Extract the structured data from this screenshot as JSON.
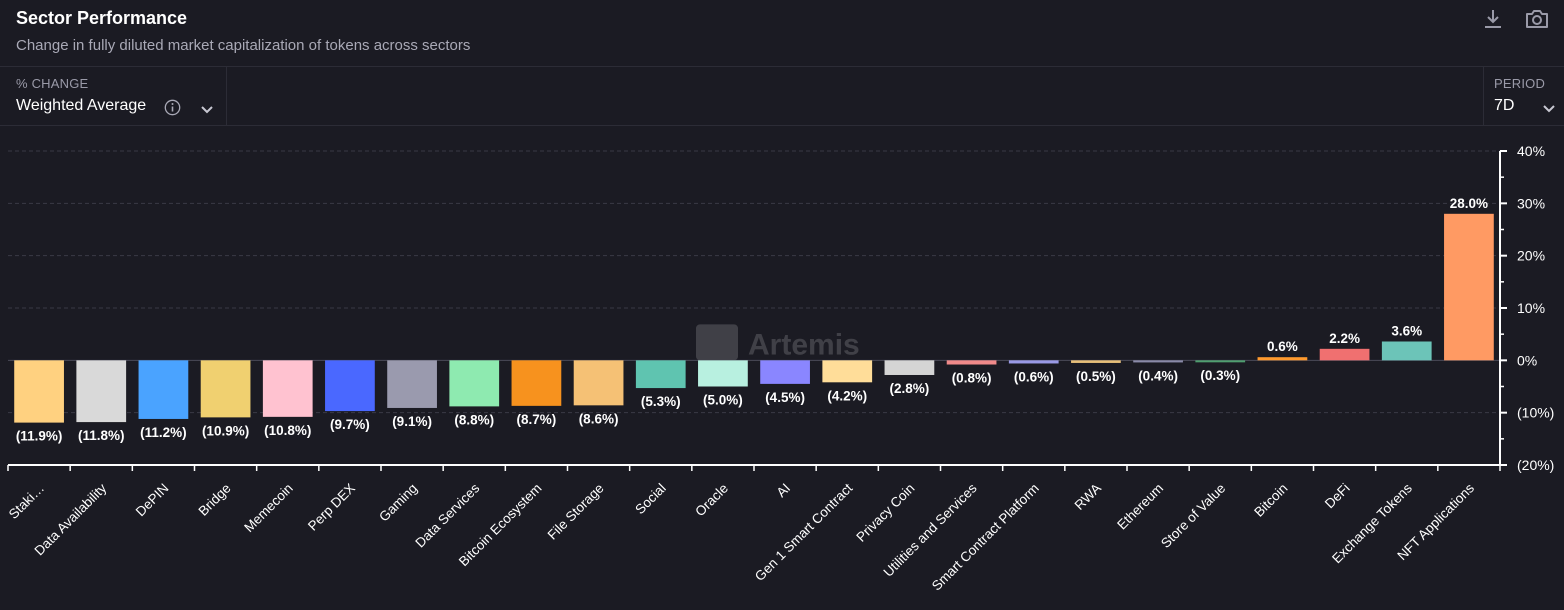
{
  "header": {
    "title": "Sector Performance",
    "subtitle": "Change in fully diluted market capitalization of tokens across sectors",
    "download_icon": "download-icon",
    "screenshot_icon": "camera-icon"
  },
  "controls": {
    "metric_label": "% CHANGE",
    "metric_value": "Weighted Average",
    "period_label": "PERIOD",
    "period_value": "7D"
  },
  "watermark": "Artemis",
  "colors": {
    "background": "#1b1b23",
    "grid": "#3a3a46",
    "axis": "#ffffff"
  },
  "chart_data": {
    "type": "bar",
    "title": "",
    "xlabel": "",
    "ylabel": "",
    "ylim": [
      -20,
      40
    ],
    "y_ticks": [
      "40%",
      "30%",
      "20%",
      "10%",
      "0%",
      "(10%)",
      "(20%)"
    ],
    "y_axis_position": "right",
    "grid": true,
    "categories": [
      "Staki…",
      "Data Availability",
      "DePIN",
      "Bridge",
      "Memecoin",
      "Perp DEX",
      "Gaming",
      "Data Services",
      "Bitcoin Ecosystem",
      "File Storage",
      "Social",
      "Oracle",
      "AI",
      "Gen 1 Smart Contract",
      "Privacy Coin",
      "Utilities and Services",
      "Smart Contract Platform",
      "RWA",
      "Ethereum",
      "Store of Value",
      "Bitcoin",
      "DeFi",
      "Exchange Tokens",
      "NFT Applications"
    ],
    "values": [
      -11.9,
      -11.8,
      -11.2,
      -10.9,
      -10.8,
      -9.7,
      -9.1,
      -8.8,
      -8.7,
      -8.6,
      -5.3,
      -5.0,
      -4.5,
      -4.2,
      -2.8,
      -0.8,
      -0.6,
      -0.5,
      -0.4,
      -0.3,
      0.6,
      2.2,
      3.6,
      28.0
    ],
    "data_labels": [
      "(11.9%)",
      "(11.8%)",
      "(11.2%)",
      "(10.9%)",
      "(10.8%)",
      "(9.7%)",
      "(9.1%)",
      "(8.8%)",
      "(8.7%)",
      "(8.6%)",
      "(5.3%)",
      "(5.0%)",
      "(4.5%)",
      "(4.2%)",
      "(2.8%)",
      "(0.8%)",
      "(0.6%)",
      "(0.5%)",
      "(0.4%)",
      "(0.3%)",
      "0.6%",
      "2.2%",
      "3.6%",
      "28.0%"
    ],
    "colors": [
      "#ffd180",
      "#d9d9d9",
      "#4aa3ff",
      "#f0d070",
      "#ffc2d0",
      "#4a68ff",
      "#9a9aae",
      "#8eeab0",
      "#f7921e",
      "#f5c175",
      "#5fc4b0",
      "#b8f0e0",
      "#8a86ff",
      "#ffdd99",
      "#d4d4d4",
      "#f08a8a",
      "#9a9ae6",
      "#e8c07a",
      "#8a8aa8",
      "#4f9e6f",
      "#ff9a2e",
      "#f07070",
      "#6cc4b8",
      "#ff9a63"
    ]
  }
}
